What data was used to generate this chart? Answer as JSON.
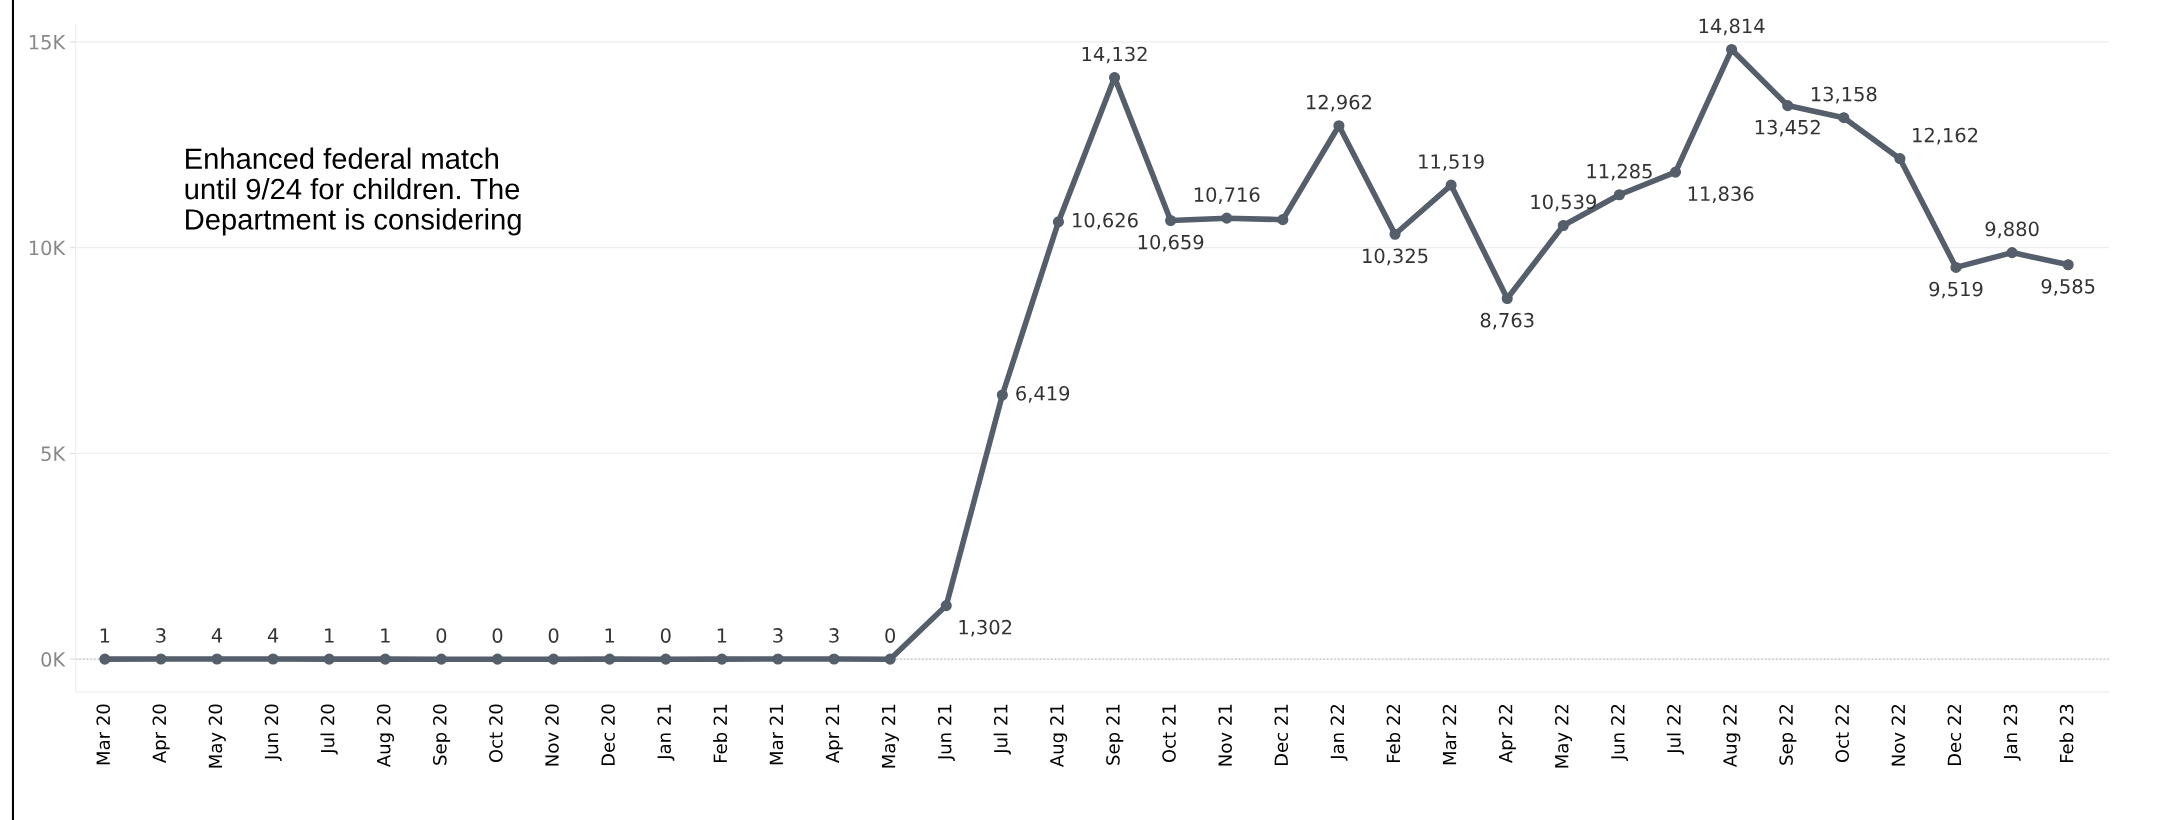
{
  "chart_data": {
    "type": "line",
    "categories": [
      "Mar 20",
      "Apr 20",
      "May 20",
      "Jun 20",
      "Jul 20",
      "Aug 20",
      "Sep 20",
      "Oct 20",
      "Nov 20",
      "Dec 20",
      "Jan 21",
      "Feb 21",
      "Mar 21",
      "Apr 21",
      "May 21",
      "Jun 21",
      "Jul 21",
      "Aug 21",
      "Sep 21",
      "Oct 21",
      "Nov 21",
      "Dec 21",
      "Jan 22",
      "Feb 22",
      "Mar 22",
      "Apr 22",
      "May 22",
      "Jun 22",
      "Jul 22",
      "Aug 22",
      "Sep 22",
      "Oct 22",
      "Nov 22",
      "Dec 22",
      "Jan 23",
      "Feb 23"
    ],
    "series": [
      {
        "color": "#555e6b",
        "values": [
          1,
          3,
          4,
          4,
          1,
          1,
          0,
          0,
          0,
          1,
          0,
          1,
          3,
          3,
          0,
          1302,
          6419,
          10626,
          14132,
          10659,
          10716,
          10680,
          12962,
          10325,
          11519,
          8763,
          10539,
          11285,
          11836,
          14814,
          13452,
          13158,
          12162,
          9519,
          9880,
          9585
        ],
        "value_labels": [
          "1",
          "3",
          "4",
          "4",
          "1",
          "1",
          "0",
          "0",
          "0",
          "1",
          "0",
          "1",
          "3",
          "3",
          "0",
          "1,302",
          "6,419",
          "10,626",
          "14,132",
          "10,659",
          "10,716",
          null,
          "12,962",
          "10,325",
          "11,519",
          "8,763",
          "10,539",
          "11,285",
          "11,836",
          "14,814",
          "13,452",
          "13,158",
          "12,162",
          "9,519",
          "9,880",
          "9,585"
        ]
      }
    ],
    "ylim": [
      -800,
      15420
    ],
    "yticks": [
      {
        "value": 0,
        "label": "0K"
      },
      {
        "value": 5000,
        "label": "5K"
      },
      {
        "value": 10000,
        "label": "10K"
      },
      {
        "value": 15000,
        "label": "15K"
      }
    ],
    "grid": "y",
    "marker": "circle",
    "line_style": "solid",
    "legend": false,
    "ref_lines": [
      {
        "axis": "y",
        "value": 0,
        "color": "#bbbbbb",
        "line_style": "dotted"
      }
    ],
    "annotations": [
      "Enhanced federal match\nuntil 9/24 for children. The\nDepartment is considering"
    ]
  }
}
